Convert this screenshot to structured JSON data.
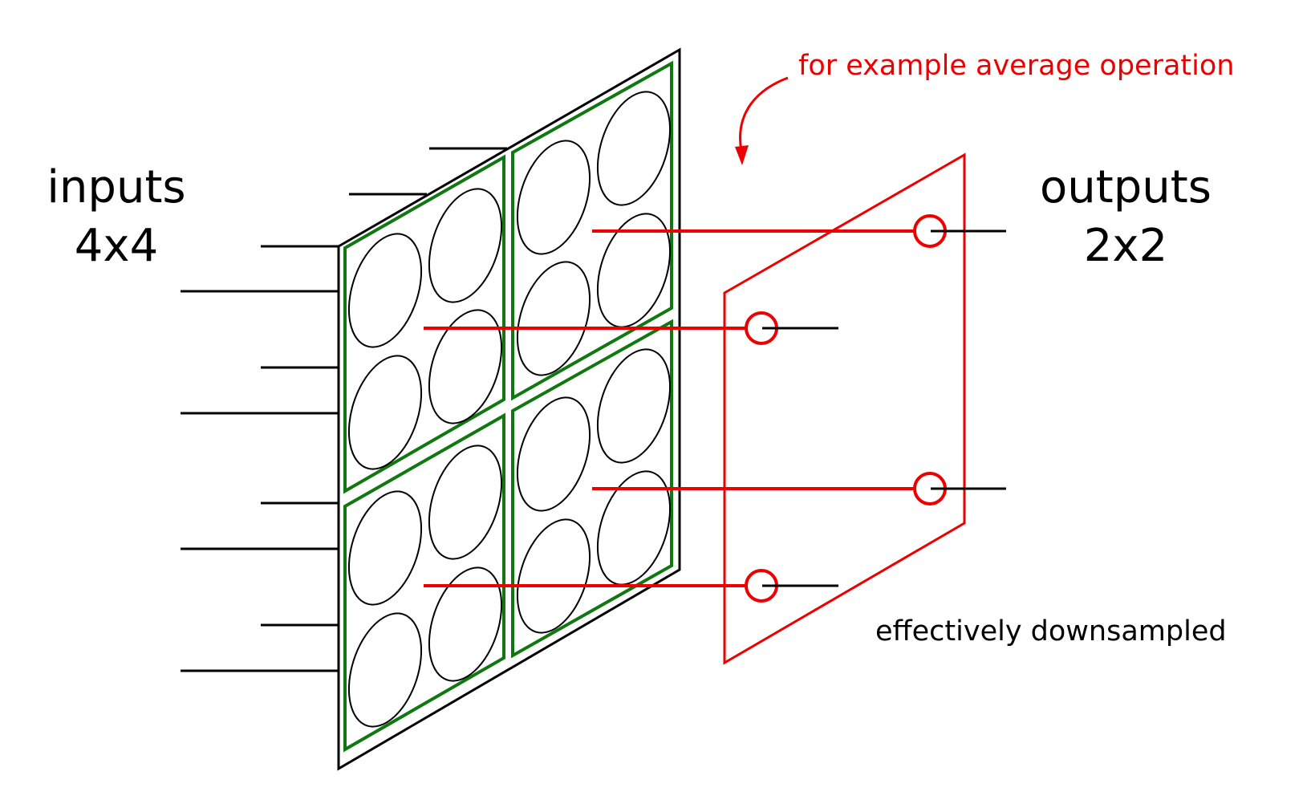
{
  "labels": {
    "inputs_line1": "inputs",
    "inputs_line2": "4x4",
    "outputs_line1": "outputs",
    "outputs_line2": "2x2",
    "annotation": "for example average operation",
    "caption": "effectively downsampled"
  },
  "colors": {
    "input_plane": "#000000",
    "pool_regions": "#117711",
    "output_plane": "#ee0000",
    "connections": "#ee0000"
  },
  "structure": {
    "input_grid": [
      4,
      4
    ],
    "pool_grid": [
      2,
      2
    ],
    "output_grid": [
      2,
      2
    ]
  }
}
